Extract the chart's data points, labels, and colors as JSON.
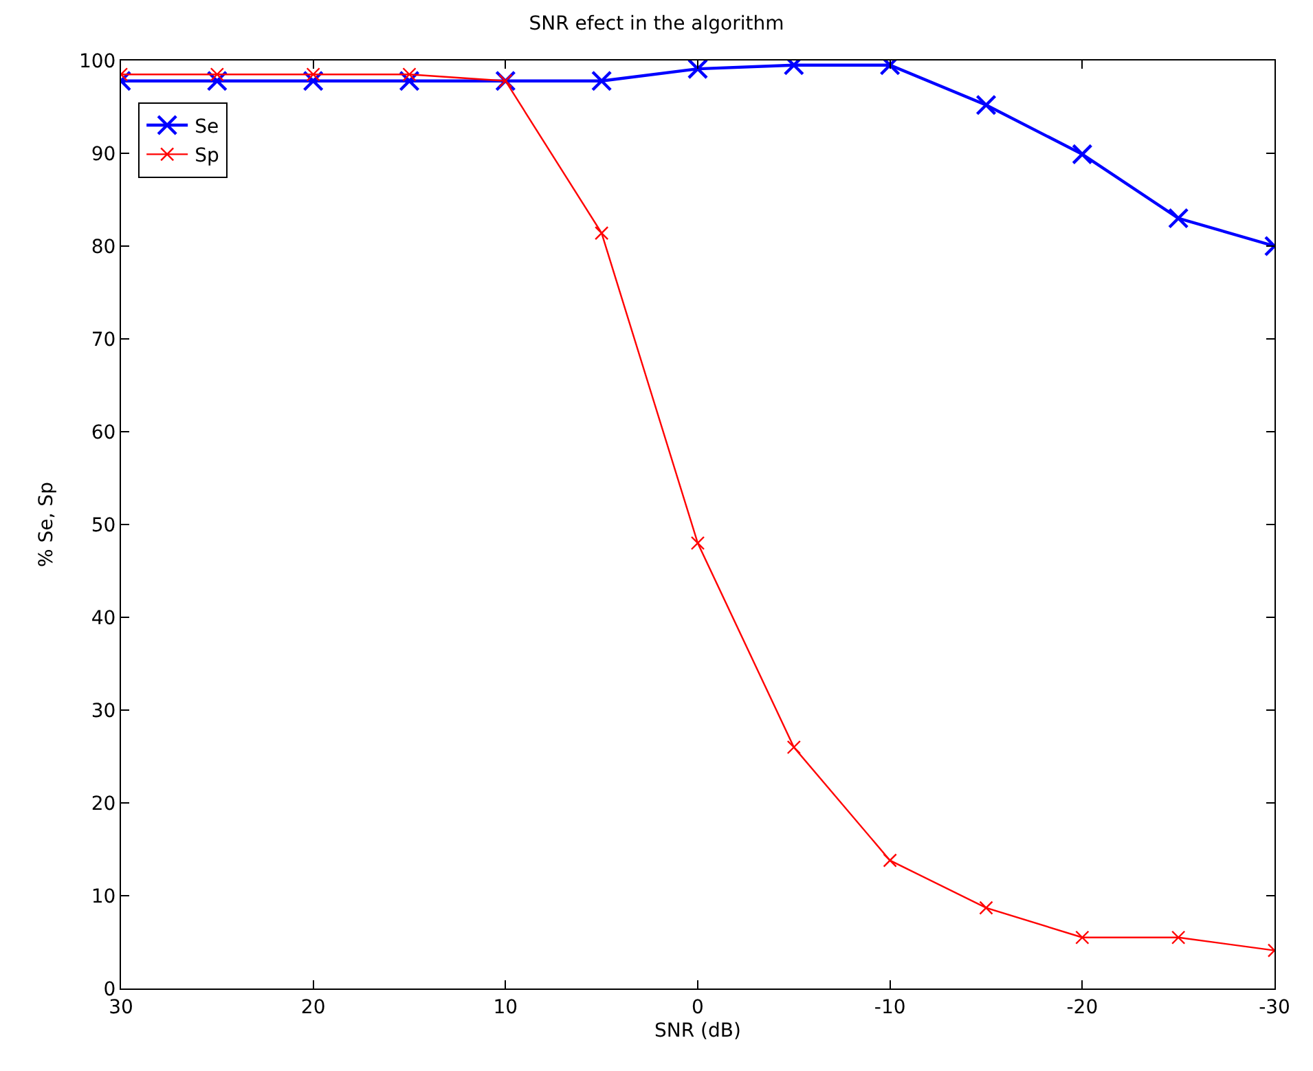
{
  "chart_data": {
    "type": "line",
    "title": "SNR efect in the algorithm",
    "xlabel": "SNR (dB)",
    "ylabel": "% Se, Sp",
    "x": [
      30,
      25,
      20,
      15,
      10,
      5,
      0,
      -5,
      -10,
      -15,
      -20,
      -25,
      -30
    ],
    "series": [
      {
        "name": "Se",
        "color": "#0000ff",
        "values": [
          97.8,
          97.8,
          97.8,
          97.8,
          97.8,
          97.8,
          99.1,
          99.5,
          99.5,
          95.2,
          89.9,
          83,
          80
        ]
      },
      {
        "name": "Sp",
        "color": "#ff0000",
        "values": [
          98.5,
          98.5,
          98.5,
          98.5,
          97.8,
          81.4,
          48,
          26,
          13.8,
          8.7,
          5.5,
          5.5,
          4.1
        ]
      }
    ],
    "xlim": [
      30,
      -30
    ],
    "xticks": [
      30,
      20,
      10,
      0,
      -10,
      -20,
      -30
    ],
    "ylim": [
      0,
      100
    ],
    "yticks": [
      0,
      10,
      20,
      30,
      40,
      50,
      60,
      70,
      80,
      90,
      100
    ],
    "legend": "top left",
    "marker": "cross",
    "line_style": "solid"
  }
}
